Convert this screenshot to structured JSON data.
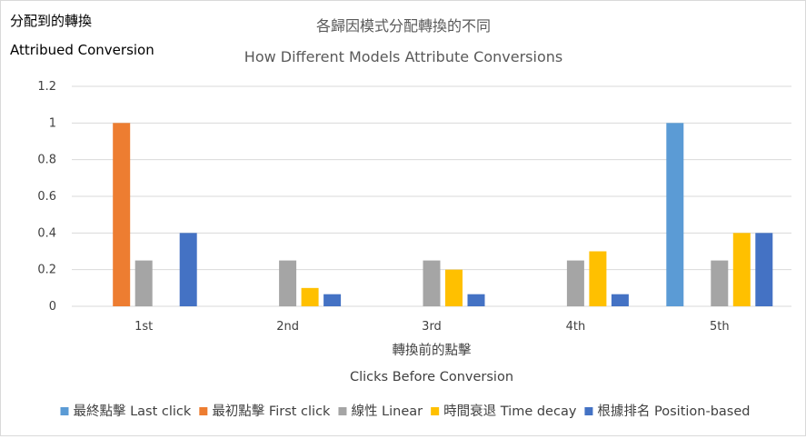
{
  "chart_data": {
    "type": "bar",
    "title": "各歸因模式分配轉換的不同",
    "subtitle": "How Different Models Attribute Conversions",
    "ylabel": "分配到的轉換",
    "ylabel_en": "Attribued Conversion",
    "xlabel": "轉換前的點擊",
    "xlabel_en": "Clicks Before Conversion",
    "ylim": [
      0,
      1.2
    ],
    "yticks": [
      "0",
      "0.2",
      "0.4",
      "0.6",
      "0.8",
      "1",
      "1.2"
    ],
    "grid": true,
    "legend_position": "bottom",
    "categories": [
      "1st",
      "2nd",
      "3rd",
      "4th",
      "5th"
    ],
    "series": [
      {
        "name": "最終點擊 Last click",
        "color": "#5b9bd5",
        "values": [
          0,
          0,
          0,
          0,
          1
        ]
      },
      {
        "name": "最初點擊 First click",
        "color": "#ed7d31",
        "values": [
          1,
          0,
          0,
          0,
          0
        ]
      },
      {
        "name": "線性 Linear",
        "color": "#a5a5a5",
        "values": [
          0.25,
          0.25,
          0.25,
          0.25,
          0.25
        ]
      },
      {
        "name": "時間衰退 Time decay",
        "color": "#ffc000",
        "values": [
          0,
          0.1,
          0.2,
          0.3,
          0.4
        ]
      },
      {
        "name": "根據排名 Position-based",
        "color": "#4472c4",
        "values": [
          0.4,
          0.066,
          0.066,
          0.066,
          0.4
        ]
      }
    ]
  }
}
